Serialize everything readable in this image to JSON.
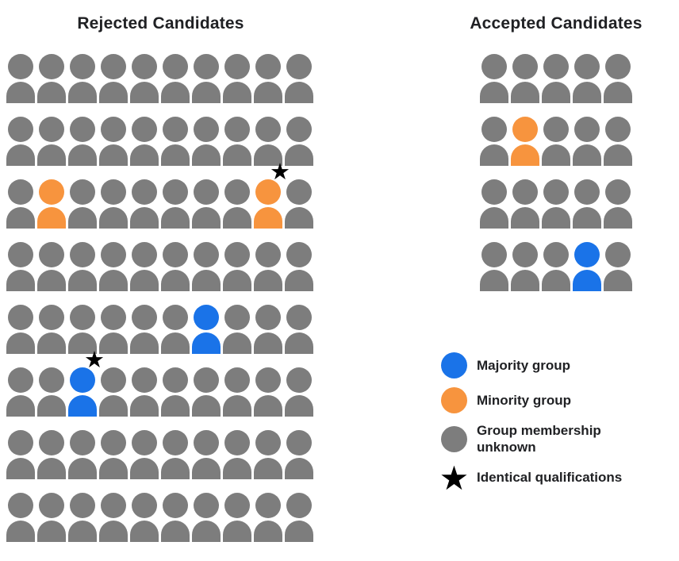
{
  "rejected": {
    "title": "Rejected Candidates",
    "rows": 8,
    "cols": 10,
    "people_special": [
      {
        "row": 2,
        "col": 1,
        "type": "minority",
        "star": false
      },
      {
        "row": 2,
        "col": 8,
        "type": "minority",
        "star": true
      },
      {
        "row": 4,
        "col": 6,
        "type": "majority",
        "star": false
      },
      {
        "row": 5,
        "col": 2,
        "type": "majority",
        "star": true
      }
    ]
  },
  "accepted": {
    "title": "Accepted Candidates",
    "rows": 4,
    "cols": 5,
    "people_special": [
      {
        "row": 1,
        "col": 1,
        "type": "minority",
        "star": false
      },
      {
        "row": 3,
        "col": 3,
        "type": "majority",
        "star": false
      }
    ]
  },
  "legend": {
    "star_glyph": "★",
    "items": [
      {
        "icon": "circle",
        "type": "majority",
        "label": "Majority group"
      },
      {
        "icon": "circle",
        "type": "minority",
        "label": "Minority group"
      },
      {
        "icon": "circle",
        "type": "unknown",
        "label": "Group membership\nunknown"
      },
      {
        "icon": "star",
        "type": "star",
        "label": "Identical qualifications"
      }
    ]
  },
  "colors": {
    "majority": "#1a73e8",
    "minority": "#f7943e",
    "unknown": "#7d7d7d",
    "star": "#000000"
  }
}
